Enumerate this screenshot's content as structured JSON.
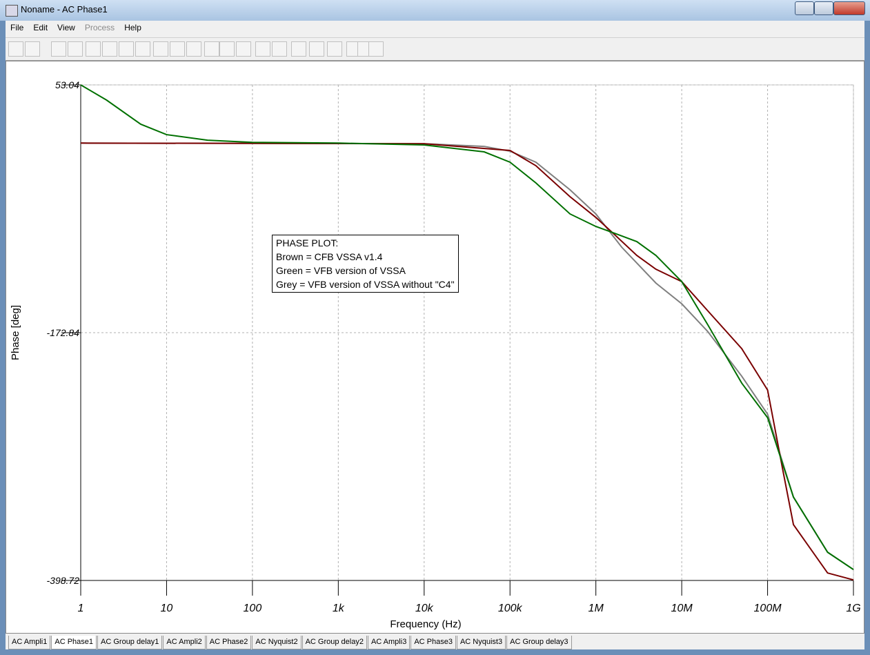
{
  "window": {
    "title": "Noname - AC Phase1"
  },
  "menu": [
    {
      "label": "File",
      "enabled": true
    },
    {
      "label": "Edit",
      "enabled": true
    },
    {
      "label": "View",
      "enabled": true
    },
    {
      "label": "Process",
      "enabled": false
    },
    {
      "label": "Help",
      "enabled": true
    }
  ],
  "tabs": [
    "AC Ampli1",
    "AC Phase1",
    "AC Group delay1",
    "AC Ampli2",
    "AC Phase2",
    "AC Nyquist2",
    "AC Group delay2",
    "AC Ampli3",
    "AC Phase3",
    "AC Nyquist3",
    "AC Group delay3"
  ],
  "active_tab": 1,
  "chart_data": {
    "type": "line",
    "xlabel": "Frequency (Hz)",
    "ylabel": "Phase [deg]",
    "annotation": [
      "PHASE PLOT:",
      "Brown = CFB VSSA v1.4",
      "Green = VFB version of VSSA",
      "Grey = VFB version of VSSA without \"C4\""
    ],
    "xscale": "log",
    "xlim": [
      1,
      1000000000
    ],
    "xticks": [
      1,
      10,
      100,
      {
        "value": 1000,
        "label": "1k"
      },
      {
        "value": 10000,
        "label": "10k"
      },
      {
        "value": 100000,
        "label": "100k"
      },
      {
        "value": 1000000,
        "label": "1M"
      },
      {
        "value": 10000000,
        "label": "10M"
      },
      {
        "value": 100000000,
        "label": "100M"
      },
      {
        "value": 1000000000,
        "label": "1G"
      }
    ],
    "ylim": [
      -398.72,
      53.04
    ],
    "yticks": [
      53.04,
      -172.84,
      -398.72
    ],
    "grid": true,
    "series": [
      {
        "color": "#7f7f7f",
        "x": [
          1,
          10000,
          50000,
          100000,
          200000,
          500000,
          1000000,
          2000000,
          5000000,
          10000000,
          20000000,
          50000000,
          100000000,
          200000000,
          500000000,
          1000000000
        ],
        "values": [
          0,
          -0.6,
          -3,
          -7.4,
          -17.4,
          -42.6,
          -64.6,
          -94.9,
          -127.6,
          -146.5,
          -171.6,
          -212.5,
          -247.1,
          -322.7,
          -373,
          -388.8
        ]
      },
      {
        "color": "#7a0000",
        "x": [
          1,
          10000,
          100000,
          200000,
          500000,
          1000000,
          1500000,
          3000000,
          5000000,
          10000000,
          20000000,
          50000000,
          100000000,
          150000000,
          200000000,
          500000000,
          1000000000
        ],
        "values": [
          0,
          -0.6,
          -6.7,
          -20.6,
          -48.9,
          -67.8,
          -80.4,
          -102.4,
          -115,
          -126.3,
          -152.7,
          -187.4,
          -225.1,
          -297.5,
          -347.8,
          -391.9,
          -398.2
        ]
      },
      {
        "color": "#007000",
        "x": [
          1,
          2,
          5,
          10,
          30,
          100,
          1000,
          10000,
          50000,
          100000,
          200000,
          500000,
          1000000,
          1500000,
          3000000,
          5000000,
          10000000,
          20000000,
          50000000,
          100000000,
          200000000,
          500000000,
          1000000000
        ],
        "values": [
          53.04,
          39.2,
          17.2,
          7.7,
          2.6,
          0.7,
          0,
          -1.7,
          -8,
          -17.4,
          -36.3,
          -64.6,
          -76,
          -81,
          -89.8,
          -102.4,
          -126.3,
          -165.3,
          -218.8,
          -250.3,
          -322.7,
          -373,
          -388.8
        ]
      }
    ]
  }
}
